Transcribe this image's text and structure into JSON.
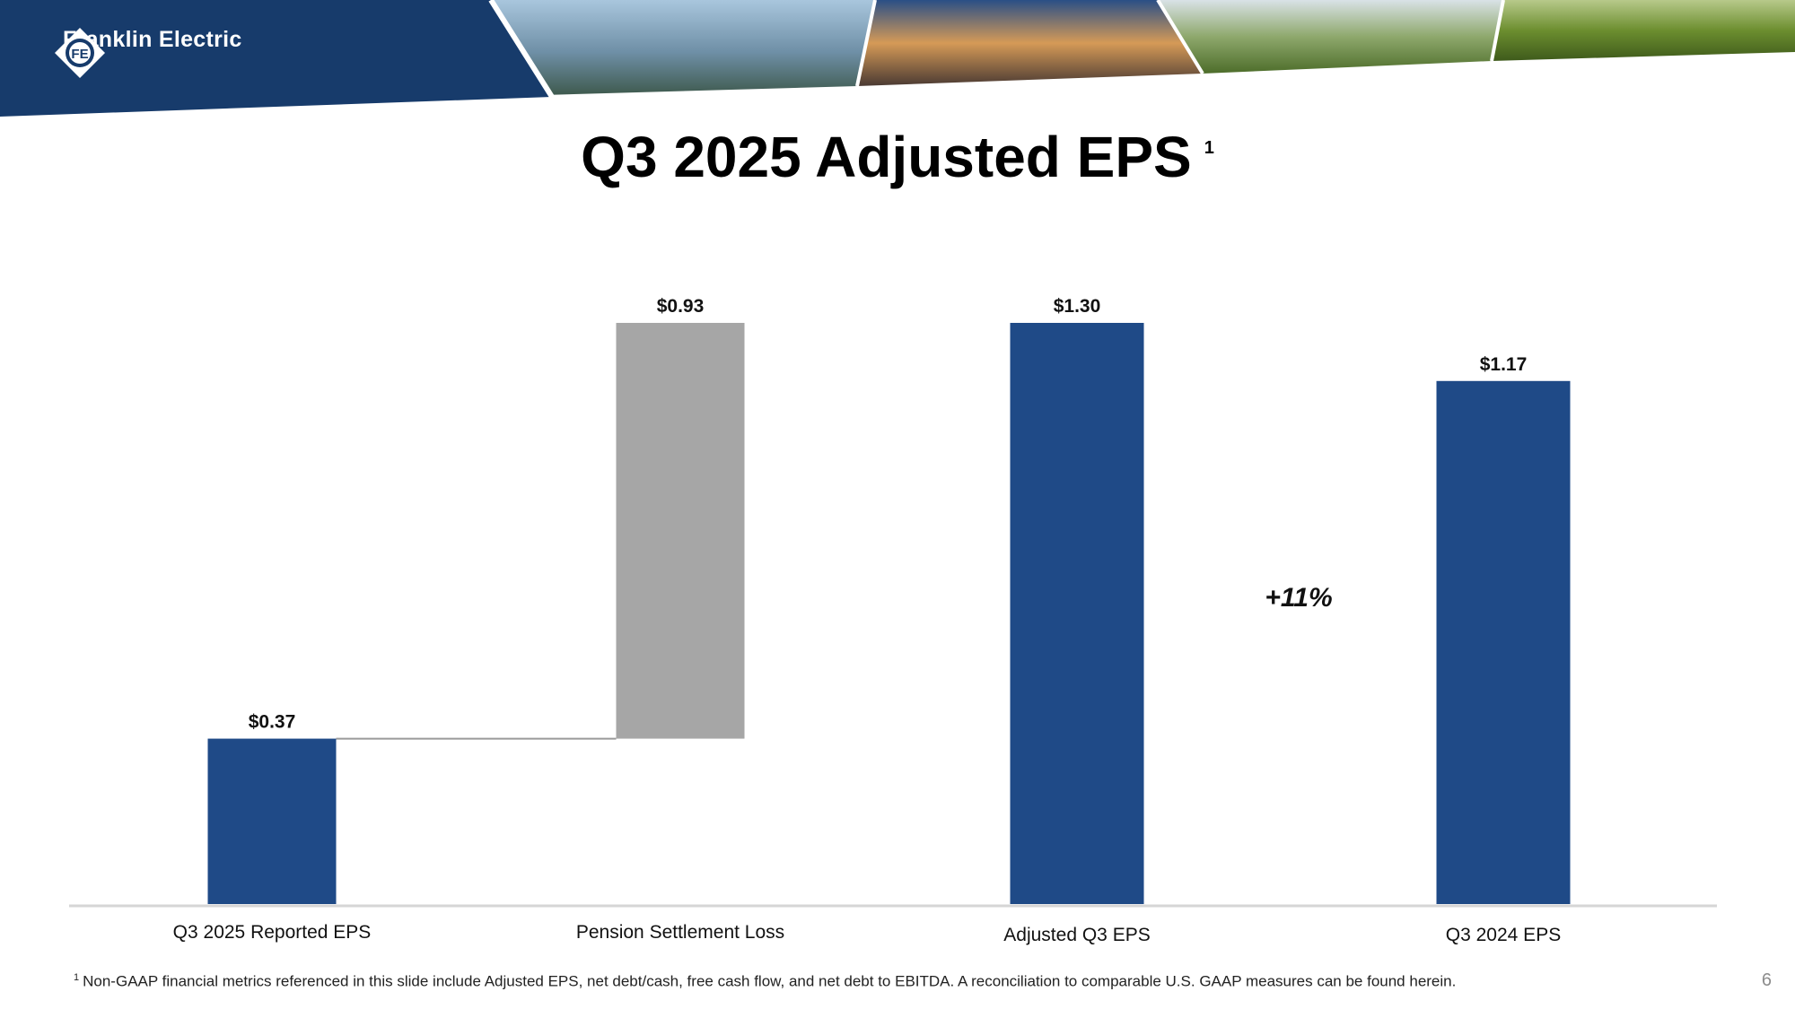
{
  "brand": {
    "company_name": "Franklin Electric",
    "logo_mark_text": "FE",
    "navy": "#1f3f71",
    "nav_dark": "#173b6b"
  },
  "slide": {
    "title": "Q3 2025 Adjusted EPS",
    "title_superscript": "1",
    "page_number": "6",
    "footnote_marker": "1",
    "footnote_text": "Non-GAAP financial metrics referenced in this slide include Adjusted EPS, net debt/cash, free cash flow, and net debt to EBITDA. A reconciliation to comparable U.S. GAAP measures can be found herein."
  },
  "header_photos": [
    "water-treatment-bridge-photo",
    "fuel-station-photo",
    "irrigation-field-photo",
    "sprinkler-photo"
  ],
  "chart_data": {
    "type": "bar",
    "subtype": "waterfall",
    "categories": [
      "Q3 2025 Reported EPS",
      "Pension Settlement Loss",
      "Adjusted Q3 EPS",
      "Q3 2024 EPS"
    ],
    "values": [
      0.37,
      0.93,
      1.3,
      1.17
    ],
    "bases": [
      0,
      0.37,
      0,
      0
    ],
    "value_labels": [
      "$0.37",
      "$0.93",
      "$1.30",
      "$1.17"
    ],
    "colors": [
      "#1f4a87",
      "#a6a6a6",
      "#1f4a87",
      "#1f4a87"
    ],
    "annotation": "+11%",
    "ylim": [
      0,
      1.35
    ],
    "title": "Q3 2025 Adjusted EPS",
    "xlabel": "",
    "ylabel": ""
  }
}
